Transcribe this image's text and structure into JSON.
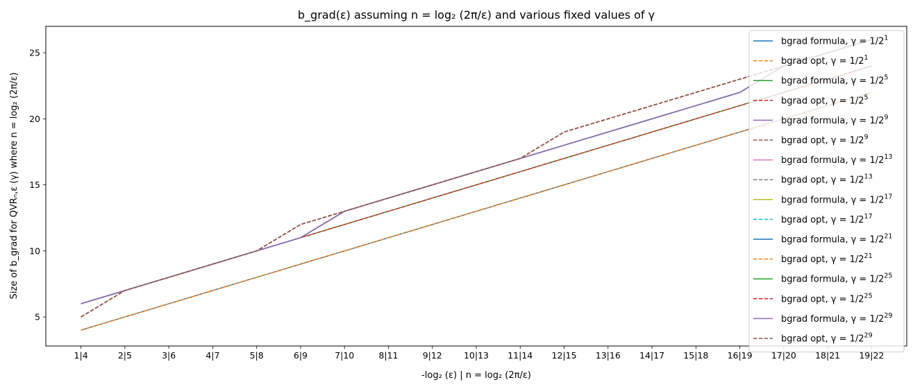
{
  "chart_data": {
    "type": "line",
    "title": "b_grad(ε) assuming n = log₂ (2π/ε) and various fixed values of γ",
    "xlabel": "-log₂ (ε) | n = log₂ (2π/ε)",
    "ylabel": "Size of b_grad for QVRₙ,ε (γ) where n = log₂ (2π/ε)",
    "x": [
      1,
      2,
      3,
      4,
      5,
      6,
      7,
      8,
      9,
      10,
      11,
      12,
      13,
      14,
      15,
      16,
      17,
      18,
      19
    ],
    "xtick_labels": [
      "1|4",
      "2|5",
      "3|6",
      "4|7",
      "5|8",
      "6|9",
      "7|10",
      "8|11",
      "9|12",
      "10|13",
      "11|14",
      "12|15",
      "13|16",
      "14|17",
      "15|18",
      "16|19",
      "17|20",
      "18|21",
      "19|22"
    ],
    "xlim": [
      0.2,
      19.8
    ],
    "ylim": [
      2.8,
      27.0
    ],
    "yticks": [
      5,
      10,
      15,
      20,
      25
    ],
    "legend_position": "upper right",
    "grid": false,
    "series": [
      {
        "name": "bgrad formula, γ = 1/2",
        "exp": "1",
        "color": "#1f77b4",
        "dash": "solid",
        "values": [
          4,
          5,
          6,
          7,
          8,
          9,
          10,
          11,
          12,
          13,
          14,
          15,
          16,
          17,
          18,
          19,
          20,
          21,
          22
        ]
      },
      {
        "name": "bgrad opt, γ = 1/2",
        "exp": "1",
        "color": "#ff7f0e",
        "dash": "dashed",
        "values": [
          4,
          5,
          6,
          7,
          8,
          9,
          10,
          11,
          12,
          13,
          14,
          15,
          16,
          17,
          18,
          19,
          20,
          21,
          22
        ]
      },
      {
        "name": "bgrad formula, γ = 1/2",
        "exp": "5",
        "color": "#2ca02c",
        "dash": "solid",
        "values": [
          6,
          7,
          8,
          9,
          10,
          11,
          12,
          13,
          14,
          15,
          16,
          17,
          18,
          19,
          20,
          21,
          22,
          23,
          24
        ]
      },
      {
        "name": "bgrad opt, γ = 1/2",
        "exp": "5",
        "color": "#d62728",
        "dash": "dashed",
        "values": [
          6,
          7,
          8,
          9,
          10,
          11,
          12,
          13,
          14,
          15,
          16,
          17,
          18,
          19,
          20,
          21,
          22,
          23,
          24
        ]
      },
      {
        "name": "bgrad formula, γ = 1/2",
        "exp": "9",
        "color": "#9467bd",
        "dash": "solid",
        "values": [
          6,
          7,
          8,
          9,
          10,
          11,
          13,
          14,
          15,
          16,
          17,
          18,
          19,
          20,
          21,
          22,
          24,
          25,
          26
        ]
      },
      {
        "name": "bgrad opt, γ = 1/2",
        "exp": "9",
        "color": "#8c564b",
        "dash": "dashed",
        "values": [
          5,
          7,
          8,
          9,
          10,
          12,
          13,
          14,
          15,
          16,
          17,
          19,
          20,
          21,
          22,
          23,
          24,
          25,
          26
        ]
      },
      {
        "name": "bgrad formula, γ = 1/2",
        "exp": "13",
        "color": "#e377c2",
        "dash": "solid",
        "values": [
          6,
          7,
          8,
          9,
          10,
          11,
          13,
          14,
          15,
          16,
          17,
          18,
          19,
          20,
          21,
          22,
          24,
          25,
          26
        ]
      },
      {
        "name": "bgrad opt, γ = 1/2",
        "exp": "13",
        "color": "#7f7f7f",
        "dash": "dashed",
        "values": [
          5,
          7,
          8,
          9,
          10,
          12,
          13,
          14,
          15,
          16,
          17,
          19,
          20,
          21,
          22,
          23,
          24,
          25,
          26
        ]
      },
      {
        "name": "bgrad formula, γ = 1/2",
        "exp": "17",
        "color": "#bcbd22",
        "dash": "solid",
        "values": [
          6,
          7,
          8,
          9,
          10,
          11,
          13,
          14,
          15,
          16,
          17,
          18,
          19,
          20,
          21,
          22,
          24,
          25,
          26
        ]
      },
      {
        "name": "bgrad opt, γ = 1/2",
        "exp": "17",
        "color": "#17becf",
        "dash": "dashed",
        "values": [
          5,
          7,
          8,
          9,
          10,
          12,
          13,
          14,
          15,
          16,
          17,
          19,
          20,
          21,
          22,
          23,
          24,
          25,
          26
        ]
      },
      {
        "name": "bgrad formula, γ = 1/2",
        "exp": "21",
        "color": "#1f77b4",
        "dash": "solid",
        "values": [
          6,
          7,
          8,
          9,
          10,
          11,
          13,
          14,
          15,
          16,
          17,
          18,
          19,
          20,
          21,
          22,
          24,
          25,
          26
        ]
      },
      {
        "name": "bgrad opt, γ = 1/2",
        "exp": "21",
        "color": "#ff7f0e",
        "dash": "dashed",
        "values": [
          5,
          7,
          8,
          9,
          10,
          12,
          13,
          14,
          15,
          16,
          17,
          19,
          20,
          21,
          22,
          23,
          24,
          25,
          26
        ]
      },
      {
        "name": "bgrad formula, γ = 1/2",
        "exp": "25",
        "color": "#2ca02c",
        "dash": "solid",
        "values": [
          6,
          7,
          8,
          9,
          10,
          11,
          13,
          14,
          15,
          16,
          17,
          18,
          19,
          20,
          21,
          22,
          24,
          25,
          26
        ]
      },
      {
        "name": "bgrad opt, γ = 1/2",
        "exp": "25",
        "color": "#d62728",
        "dash": "dashed",
        "values": [
          5,
          7,
          8,
          9,
          10,
          12,
          13,
          14,
          15,
          16,
          17,
          19,
          20,
          21,
          22,
          23,
          24,
          25,
          26
        ]
      },
      {
        "name": "bgrad formula, γ = 1/2",
        "exp": "29",
        "color": "#9467bd",
        "dash": "solid",
        "values": [
          6,
          7,
          8,
          9,
          10,
          11,
          13,
          14,
          15,
          16,
          17,
          18,
          19,
          20,
          21,
          22,
          24,
          25,
          26
        ]
      },
      {
        "name": "bgrad opt, γ = 1/2",
        "exp": "29",
        "color": "#8c564b",
        "dash": "dashed",
        "values": [
          5,
          7,
          8,
          9,
          10,
          12,
          13,
          14,
          15,
          16,
          17,
          19,
          20,
          21,
          22,
          23,
          24,
          25,
          26
        ]
      }
    ]
  }
}
